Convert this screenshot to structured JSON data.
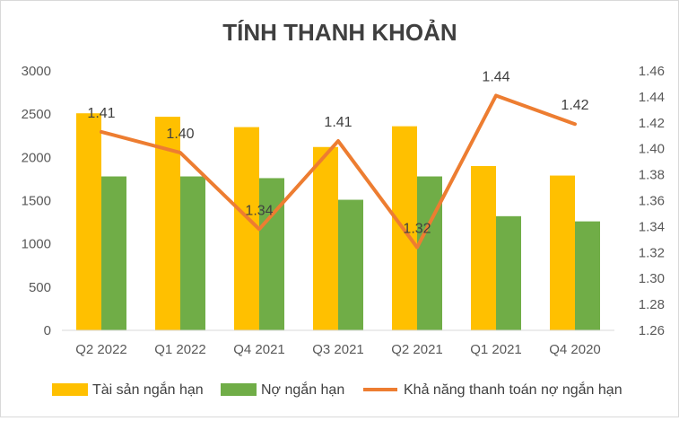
{
  "chart_data": {
    "type": "bar+line",
    "title": "TÍNH THANH KHOẢN",
    "categories": [
      "Q2 2022",
      "Q1 2022",
      "Q4 2021",
      "Q3 2021",
      "Q2 2021",
      "Q1 2021",
      "Q4 2020"
    ],
    "series": [
      {
        "name": "Tài sản ngắn hạn",
        "type": "bar",
        "axis": "left",
        "color": "#FFC000",
        "values": [
          2510,
          2470,
          2350,
          2120,
          2360,
          1900,
          1790
        ]
      },
      {
        "name": "Nợ ngắn hạn",
        "type": "bar",
        "axis": "left",
        "color": "#70AD47",
        "values": [
          1780,
          1780,
          1760,
          1510,
          1780,
          1320,
          1260
        ]
      },
      {
        "name": "Khả năng thanh toán nợ ngắn hạn",
        "type": "line",
        "axis": "right",
        "color": "#ED7D31",
        "values": [
          1.413,
          1.397,
          1.338,
          1.406,
          1.324,
          1.441,
          1.419
        ],
        "labels": [
          "1.41",
          "1.40",
          "1.34",
          "1.41",
          "1.32",
          "1.44",
          "1.42"
        ]
      }
    ],
    "y_left": {
      "min": 0,
      "max": 3000,
      "ticks": [
        "0",
        "500",
        "1000",
        "1500",
        "2000",
        "2500",
        "3000"
      ]
    },
    "y_right": {
      "min": 1.26,
      "max": 1.46,
      "ticks": [
        "1.26",
        "1.28",
        "1.30",
        "1.32",
        "1.34",
        "1.36",
        "1.38",
        "1.40",
        "1.42",
        "1.44",
        "1.46"
      ]
    },
    "grid": false,
    "legend_position": "bottom"
  }
}
